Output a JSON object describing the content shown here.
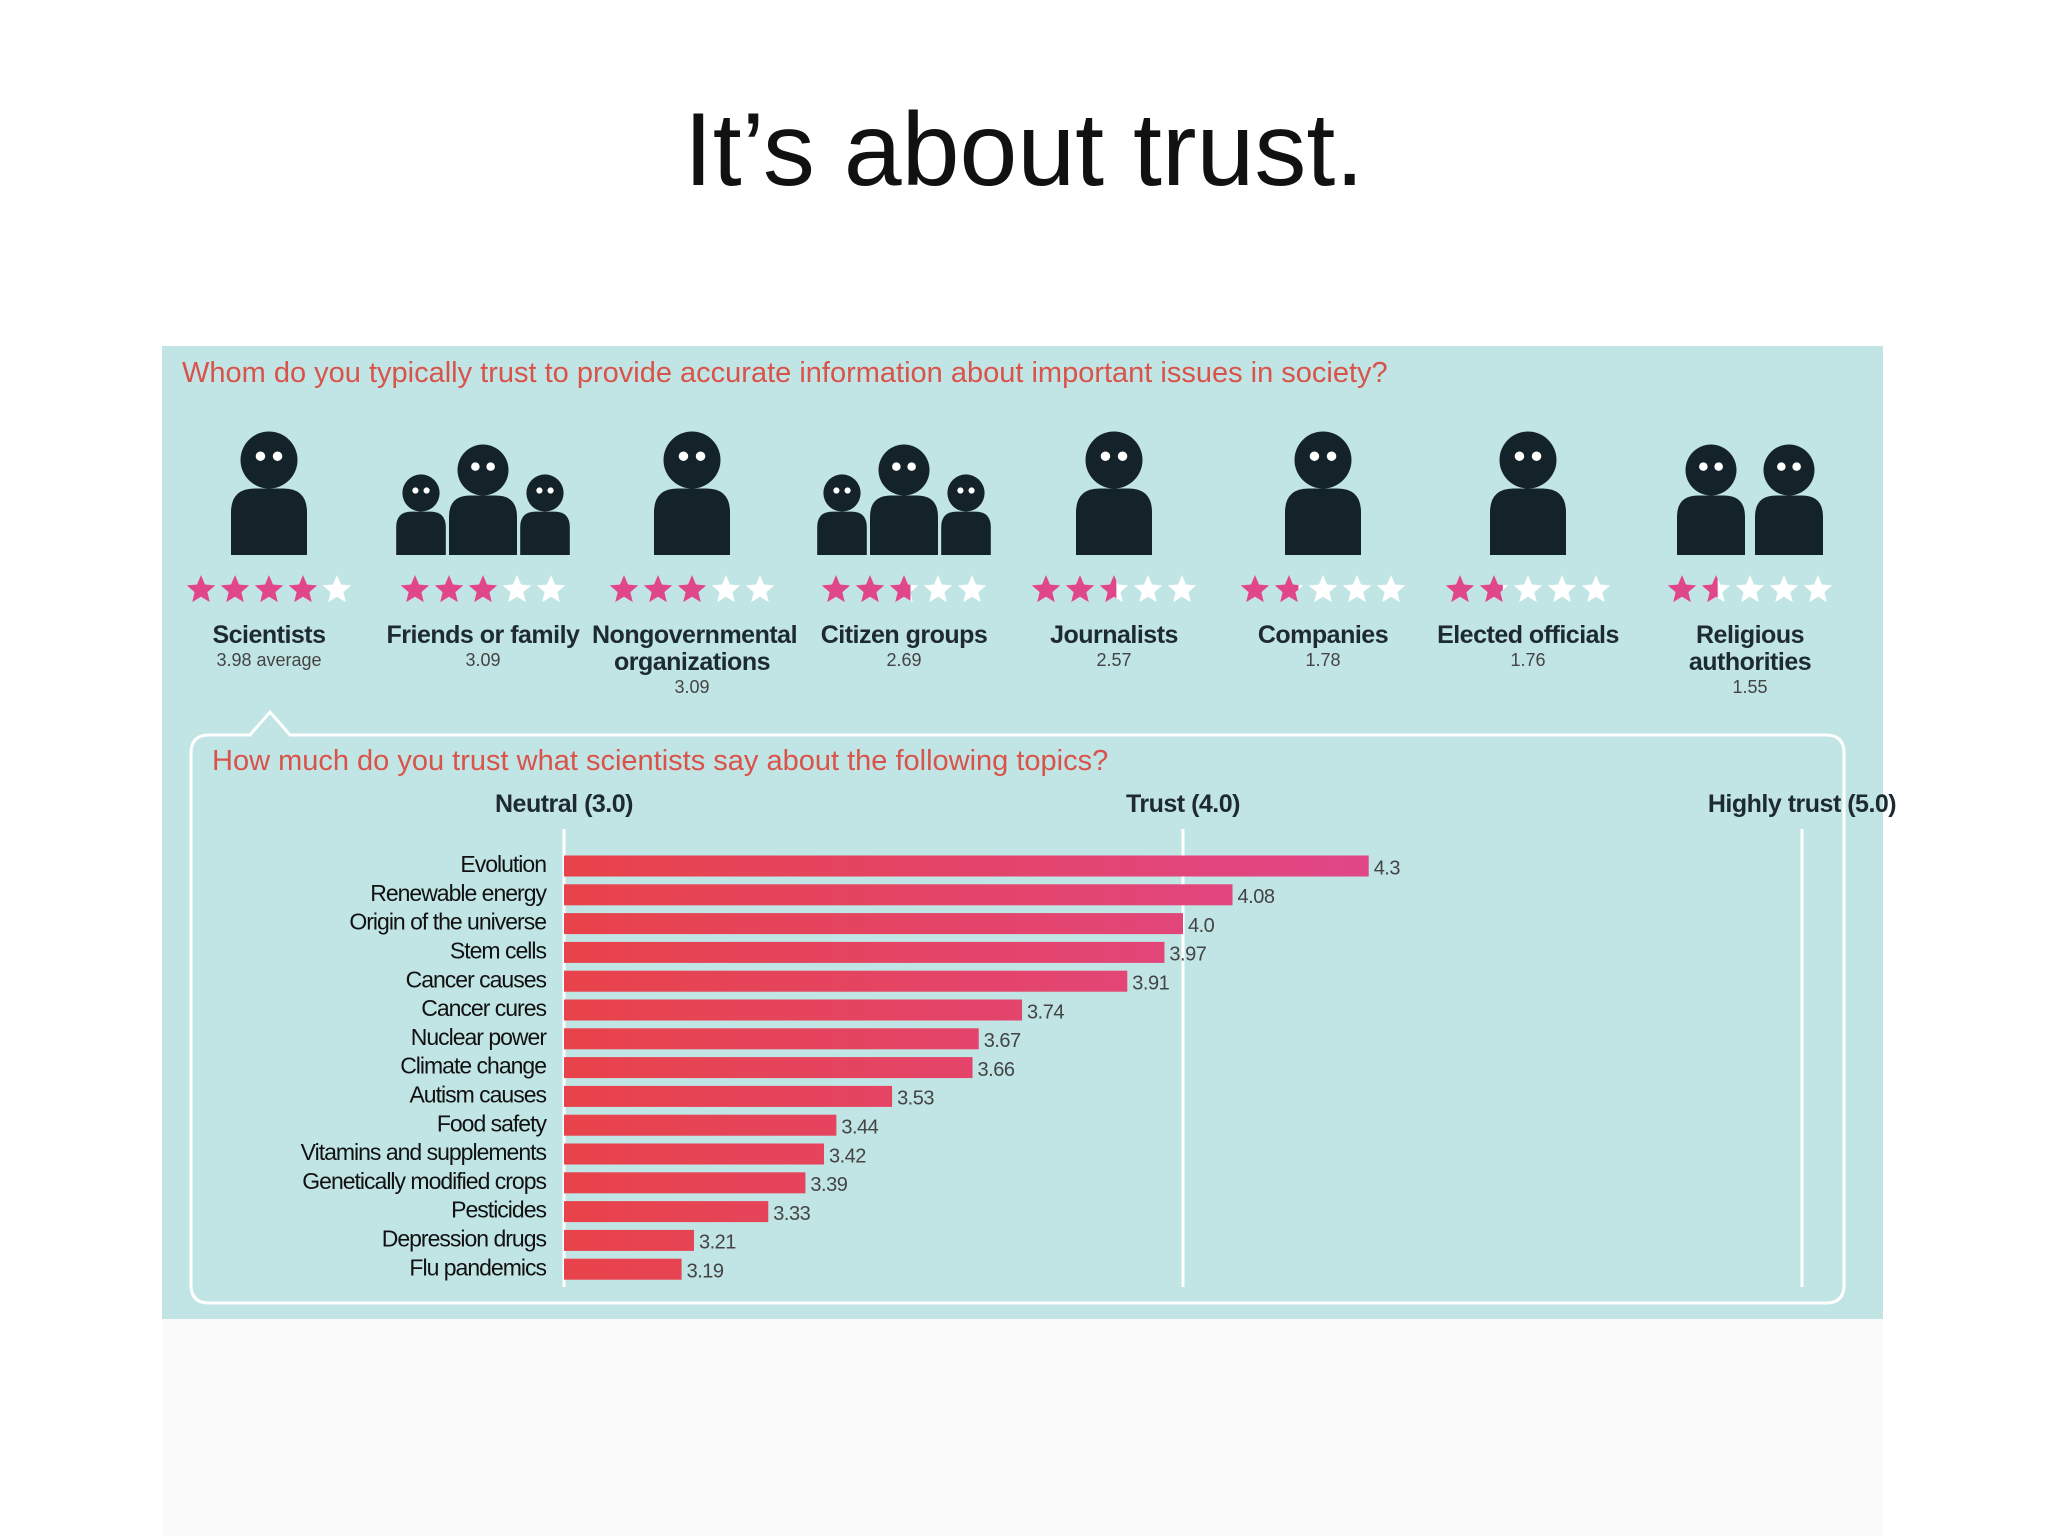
{
  "slide_title": "It’s about trust.",
  "chart_data": [
    {
      "type": "rating",
      "title": "Whom do you typically trust to provide accurate information about important issues in society?",
      "categories": [
        "Scientists",
        "Friends or family",
        "Nongovernmental organizations",
        "Citizen groups",
        "Journalists",
        "Companies",
        "Elected officials",
        "Religious authorities"
      ],
      "values": [
        3.98,
        3.09,
        3.09,
        2.69,
        2.57,
        1.78,
        1.76,
        1.55
      ],
      "value_labels": [
        "3.98 average",
        "3.09",
        "3.09",
        "2.69",
        "2.57",
        "1.78",
        "1.76",
        "1.55"
      ],
      "xlim": [
        0,
        5
      ],
      "color": "#e0468a"
    },
    {
      "type": "bar",
      "title": "How much do you trust what scientists say about the following topics?",
      "categories": [
        "Evolution",
        "Renewable energy",
        "Origin of the universe",
        "Stem cells",
        "Cancer causes",
        "Cancer cures",
        "Nuclear power",
        "Climate change",
        "Autism causes",
        "Food safety",
        "Vitamins and supplements",
        "Genetically modified crops",
        "Pesticides",
        "Depression drugs",
        "Flu pandemics"
      ],
      "values": [
        4.3,
        4.08,
        4.0,
        3.97,
        3.91,
        3.74,
        3.67,
        3.66,
        3.53,
        3.44,
        3.42,
        3.39,
        3.33,
        3.21,
        3.19
      ],
      "value_labels": [
        "4.3",
        "4.08",
        "4.0",
        "3.97",
        "3.91",
        "3.74",
        "3.67",
        "3.66",
        "3.53",
        "3.44",
        "3.42",
        "3.39",
        "3.33",
        "3.21",
        "3.19"
      ],
      "xlim": [
        3,
        5
      ],
      "xticks": [
        {
          "value": 3,
          "label": "Neutral (3.0)"
        },
        {
          "value": 4,
          "label": "Trust (4.0)"
        },
        {
          "value": 5,
          "label": "Highly trust (5.0)"
        }
      ],
      "grid": true,
      "colors": [
        "#e8434a",
        "#e0468a"
      ]
    }
  ]
}
